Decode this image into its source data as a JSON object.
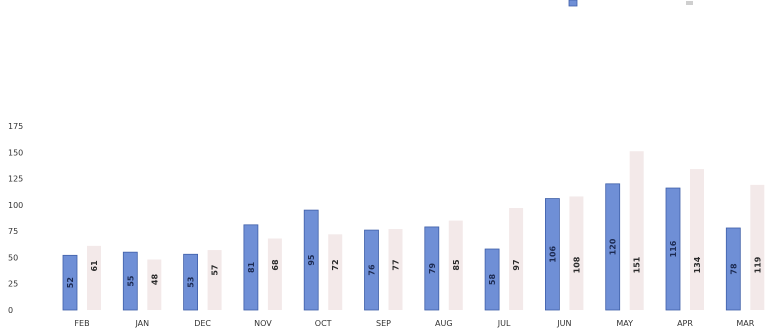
{
  "chart_data": {
    "type": "bar",
    "title": "",
    "xlabel": "",
    "ylabel": "",
    "categories": [
      "FEB",
      "JAN",
      "DEC",
      "NOV",
      "OCT",
      "SEP",
      "AUG",
      "JUL",
      "JUN",
      "MAY",
      "APR",
      "MAR"
    ],
    "series": [
      {
        "name": "",
        "color": "#6f8fd6",
        "values": [
          52,
          55,
          53,
          81,
          95,
          76,
          79,
          58,
          106,
          120,
          116,
          78
        ]
      },
      {
        "name": "",
        "color": "#f3e9e9",
        "values": [
          61,
          48,
          57,
          68,
          72,
          77,
          85,
          97,
          108,
          151,
          134,
          119
        ]
      }
    ],
    "yticks": [
      0,
      25,
      50,
      75,
      100,
      125,
      150,
      175
    ],
    "ylim": [
      0,
      175
    ],
    "grid": false,
    "legend": "top-right"
  }
}
